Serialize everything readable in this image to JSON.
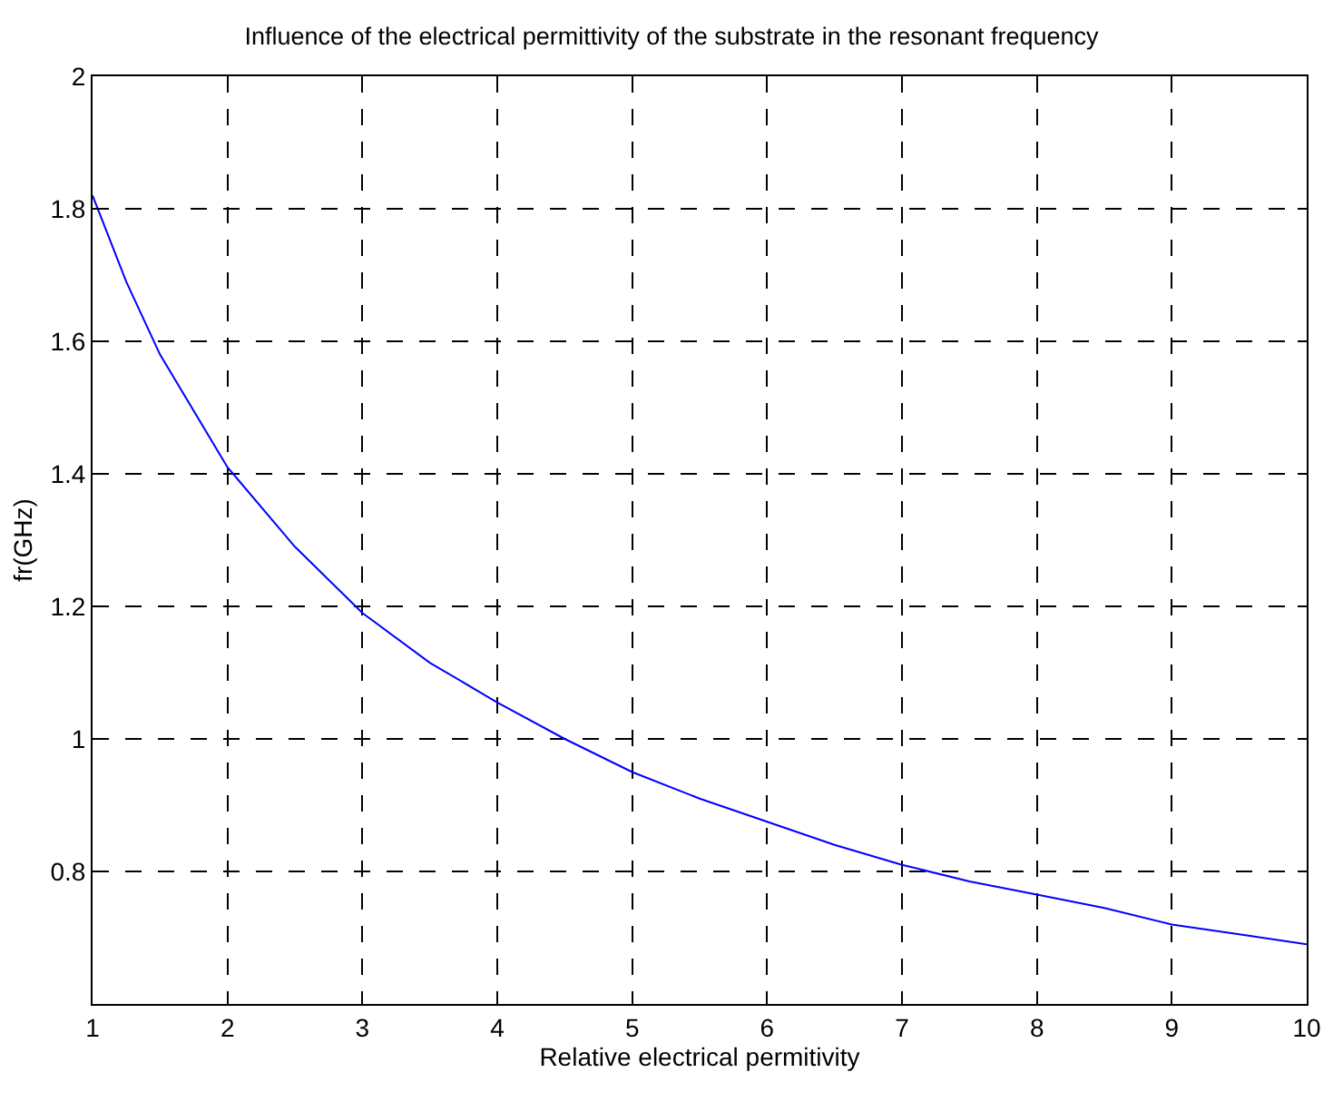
{
  "chart_data": {
    "type": "line",
    "title": "Influence of the electrical permittivity of the substrate in the resonant frequency",
    "xlabel": "Relative electrical permitivity",
    "ylabel": "fr(GHz)",
    "x": [
      1,
      1.25,
      1.5,
      2,
      2.5,
      3,
      3.5,
      4,
      4.5,
      5,
      5.5,
      6,
      6.5,
      7,
      7.5,
      8,
      8.5,
      9,
      9.5,
      10
    ],
    "series": [
      {
        "color": "#0000ff",
        "values": [
          1.82,
          1.69,
          1.58,
          1.41,
          1.29,
          1.19,
          1.115,
          1.055,
          1.0,
          0.95,
          0.91,
          0.875,
          0.84,
          0.81,
          0.785,
          0.765,
          0.745,
          0.72,
          0.705,
          0.69
        ]
      }
    ],
    "xlim": [
      1,
      10
    ],
    "xticks": [
      1,
      2,
      3,
      4,
      5,
      6,
      7,
      8,
      9,
      10
    ],
    "ylim": [
      0.6,
      2
    ],
    "yticks": [
      {
        "value": 0.6,
        "label": null
      },
      0.8,
      1,
      1.2,
      1.4,
      1.6,
      1.8,
      2
    ],
    "grid": true,
    "legend": false,
    "marker": "none",
    "line_style": "solid"
  }
}
